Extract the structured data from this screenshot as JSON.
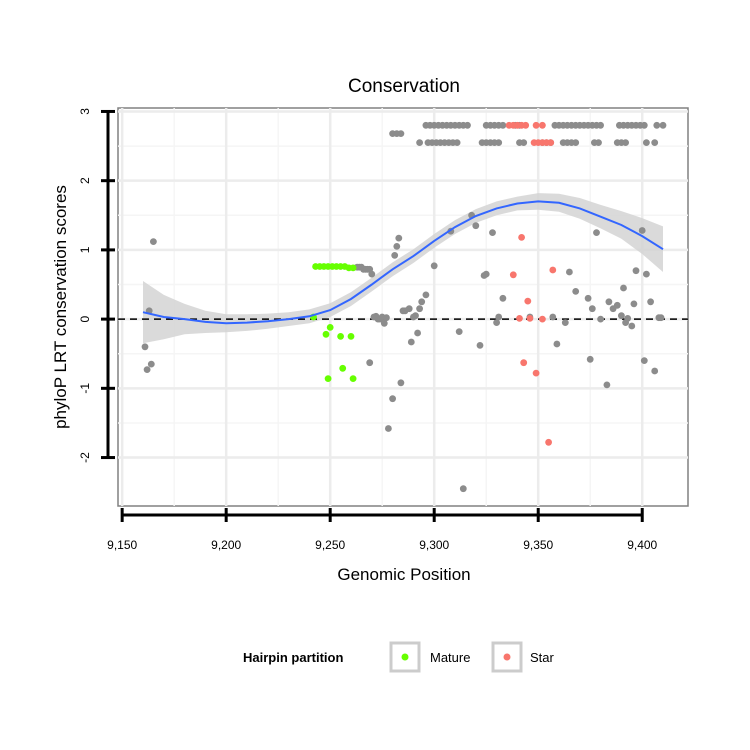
{
  "chart_data": {
    "type": "scatter",
    "title": "Conservation",
    "xlabel": "Genomic Position",
    "ylabel": "phyloP LRT conservation scores",
    "xlim": [
      9148,
      9422
    ],
    "ylim": [
      -2.7,
      3.05
    ],
    "x_ticks": [
      9150,
      9200,
      9250,
      9300,
      9350,
      9400
    ],
    "x_tick_labels": [
      "9,150",
      "9,200",
      "9,250",
      "9,300",
      "9,350",
      "9,400"
    ],
    "y_ticks": [
      -2,
      -1,
      0,
      1,
      2,
      3
    ],
    "y_tick_labels": [
      "-2",
      "-1",
      "0",
      "1",
      "2",
      "3"
    ],
    "grid": true,
    "reference_line": {
      "y": 0,
      "style": "dashed",
      "color": "#000000"
    },
    "legend": {
      "title": "Hairpin partition",
      "position": "bottom",
      "entries": [
        {
          "label": "Mature",
          "color": "#66FF00"
        },
        {
          "label": "Star",
          "color": "#F8766D"
        }
      ]
    },
    "colors": {
      "other": "#8C8C8C",
      "mature": "#66FF00",
      "star": "#F8766D",
      "smooth": "#3366FF",
      "band": "#D3D3D3"
    },
    "series": [
      {
        "name": "Other",
        "points": [
          [
            9161,
            -0.4
          ],
          [
            9162,
            -0.73
          ],
          [
            9163,
            0.12
          ],
          [
            9164,
            -0.65
          ],
          [
            9165,
            1.12
          ],
          [
            9263,
            0.75
          ],
          [
            9264,
            0.75
          ],
          [
            9265,
            0.75
          ],
          [
            9266,
            0.72
          ],
          [
            9267,
            0.72
          ],
          [
            9268,
            0.72
          ],
          [
            9269,
            0.72
          ],
          [
            9270,
            0.65
          ],
          [
            9269,
            -0.63
          ],
          [
            9271,
            0.03
          ],
          [
            9272,
            0.04
          ],
          [
            9273,
            0.0
          ],
          [
            9274,
            0.0
          ],
          [
            9275,
            0.03
          ],
          [
            9276,
            -0.06
          ],
          [
            9277,
            0.02
          ],
          [
            9278,
            -1.58
          ],
          [
            9280,
            -1.15
          ],
          [
            9281,
            0.92
          ],
          [
            9282,
            1.05
          ],
          [
            9283,
            1.17
          ],
          [
            9284,
            -0.92
          ],
          [
            9285,
            0.12
          ],
          [
            9286,
            0.12
          ],
          [
            9288,
            0.15
          ],
          [
            9289,
            -0.33
          ],
          [
            9290,
            0.03
          ],
          [
            9291,
            0.05
          ],
          [
            9292,
            -0.2
          ],
          [
            9293,
            0.15
          ],
          [
            9294,
            0.25
          ],
          [
            9296,
            0.35
          ],
          [
            9300,
            0.77
          ],
          [
            9308,
            1.27
          ],
          [
            9312,
            -0.18
          ],
          [
            9314,
            -2.45
          ],
          [
            9318,
            1.5
          ],
          [
            9320,
            1.35
          ],
          [
            9322,
            -0.38
          ],
          [
            9324,
            0.63
          ],
          [
            9325,
            0.65
          ],
          [
            9328,
            1.25
          ],
          [
            9330,
            -0.05
          ],
          [
            9331,
            0.03
          ],
          [
            9333,
            0.3
          ],
          [
            9346,
            0.03
          ],
          [
            9357,
            0.03
          ],
          [
            9359,
            -0.36
          ],
          [
            9363,
            -0.05
          ],
          [
            9365,
            0.68
          ],
          [
            9368,
            0.4
          ],
          [
            9374,
            0.3
          ],
          [
            9375,
            -0.58
          ],
          [
            9376,
            0.15
          ],
          [
            9378,
            1.25
          ],
          [
            9380,
            0.0
          ],
          [
            9383,
            -0.95
          ],
          [
            9384,
            0.25
          ],
          [
            9386,
            0.15
          ],
          [
            9388,
            0.2
          ],
          [
            9390,
            0.05
          ],
          [
            9391,
            0.45
          ],
          [
            9392,
            -0.05
          ],
          [
            9393,
            0.01
          ],
          [
            9395,
            -0.1
          ],
          [
            9396,
            0.22
          ],
          [
            9397,
            0.7
          ],
          [
            9400,
            1.28
          ],
          [
            9401,
            -0.6
          ],
          [
            9402,
            0.65
          ],
          [
            9404,
            0.25
          ],
          [
            9406,
            -0.75
          ],
          [
            9408,
            0.02
          ],
          [
            9409,
            0.02
          ],
          [
            9280,
            2.68
          ],
          [
            9282,
            2.68
          ],
          [
            9284,
            2.68
          ],
          [
            9293,
            2.55
          ],
          [
            9297,
            2.55
          ],
          [
            9299,
            2.55
          ],
          [
            9301,
            2.55
          ],
          [
            9303,
            2.55
          ],
          [
            9305,
            2.55
          ],
          [
            9307,
            2.55
          ],
          [
            9309,
            2.55
          ],
          [
            9311,
            2.55
          ],
          [
            9323,
            2.55
          ],
          [
            9325,
            2.55
          ],
          [
            9327,
            2.55
          ],
          [
            9329,
            2.55
          ],
          [
            9331,
            2.55
          ],
          [
            9341,
            2.55
          ],
          [
            9343,
            2.55
          ],
          [
            9352,
            2.55
          ],
          [
            9354,
            2.55
          ],
          [
            9356,
            2.55
          ],
          [
            9362,
            2.55
          ],
          [
            9364,
            2.55
          ],
          [
            9366,
            2.55
          ],
          [
            9368,
            2.55
          ],
          [
            9377,
            2.55
          ],
          [
            9379,
            2.55
          ],
          [
            9388,
            2.55
          ],
          [
            9390,
            2.55
          ],
          [
            9392,
            2.55
          ],
          [
            9402,
            2.55
          ],
          [
            9406,
            2.55
          ],
          [
            9296,
            2.8
          ],
          [
            9298,
            2.8
          ],
          [
            9300,
            2.8
          ],
          [
            9302,
            2.8
          ],
          [
            9304,
            2.8
          ],
          [
            9306,
            2.8
          ],
          [
            9308,
            2.8
          ],
          [
            9310,
            2.8
          ],
          [
            9312,
            2.8
          ],
          [
            9314,
            2.8
          ],
          [
            9316,
            2.8
          ],
          [
            9325,
            2.8
          ],
          [
            9327,
            2.8
          ],
          [
            9329,
            2.8
          ],
          [
            9331,
            2.8
          ],
          [
            9333,
            2.8
          ],
          [
            9339,
            2.8
          ],
          [
            9341,
            2.8
          ],
          [
            9358,
            2.8
          ],
          [
            9360,
            2.8
          ],
          [
            9362,
            2.8
          ],
          [
            9364,
            2.8
          ],
          [
            9366,
            2.8
          ],
          [
            9368,
            2.8
          ],
          [
            9370,
            2.8
          ],
          [
            9372,
            2.8
          ],
          [
            9374,
            2.8
          ],
          [
            9376,
            2.8
          ],
          [
            9378,
            2.8
          ],
          [
            9380,
            2.8
          ],
          [
            9389,
            2.8
          ],
          [
            9391,
            2.8
          ],
          [
            9393,
            2.8
          ],
          [
            9395,
            2.8
          ],
          [
            9397,
            2.8
          ],
          [
            9399,
            2.8
          ],
          [
            9401,
            2.8
          ],
          [
            9407,
            2.8
          ],
          [
            9410,
            2.8
          ]
        ]
      },
      {
        "name": "Mature",
        "points": [
          [
            9243,
            0.76
          ],
          [
            9245,
            0.76
          ],
          [
            9247,
            0.76
          ],
          [
            9249,
            0.76
          ],
          [
            9251,
            0.76
          ],
          [
            9253,
            0.76
          ],
          [
            9255,
            0.76
          ],
          [
            9257,
            0.76
          ],
          [
            9259,
            0.74
          ],
          [
            9261,
            0.74
          ],
          [
            9242,
            0.03
          ],
          [
            9250,
            -0.12
          ],
          [
            9248,
            -0.22
          ],
          [
            9255,
            -0.25
          ],
          [
            9260,
            -0.25
          ],
          [
            9249,
            -0.86
          ],
          [
            9256,
            -0.71
          ],
          [
            9261,
            -0.86
          ]
        ]
      },
      {
        "name": "Star",
        "points": [
          [
            9336,
            2.8
          ],
          [
            9338,
            2.8
          ],
          [
            9340,
            2.8
          ],
          [
            9342,
            2.8
          ],
          [
            9344,
            2.8
          ],
          [
            9349,
            2.8
          ],
          [
            9352,
            2.8
          ],
          [
            9348,
            2.55
          ],
          [
            9350,
            2.55
          ],
          [
            9352,
            2.55
          ],
          [
            9354,
            2.55
          ],
          [
            9356,
            2.55
          ],
          [
            9342,
            1.18
          ],
          [
            9338,
            0.64
          ],
          [
            9357,
            0.71
          ],
          [
            9345,
            0.26
          ],
          [
            9341,
            0.01
          ],
          [
            9346,
            0.01
          ],
          [
            9352,
            0.0
          ],
          [
            9343,
            -0.63
          ],
          [
            9349,
            -0.78
          ],
          [
            9355,
            -1.78
          ]
        ]
      }
    ],
    "smooth": {
      "x": [
        9160,
        9170,
        9180,
        9190,
        9200,
        9210,
        9220,
        9230,
        9240,
        9250,
        9260,
        9270,
        9280,
        9290,
        9300,
        9310,
        9320,
        9330,
        9340,
        9350,
        9360,
        9370,
        9380,
        9390,
        9400,
        9410
      ],
      "y": [
        0.1,
        0.03,
        0.0,
        -0.04,
        -0.06,
        -0.05,
        -0.03,
        0.0,
        0.04,
        0.13,
        0.29,
        0.5,
        0.72,
        0.91,
        1.13,
        1.33,
        1.49,
        1.6,
        1.67,
        1.7,
        1.68,
        1.6,
        1.48,
        1.36,
        1.2,
        1.01
      ],
      "se": [
        0.45,
        0.32,
        0.22,
        0.16,
        0.13,
        0.12,
        0.11,
        0.1,
        0.1,
        0.1,
        0.1,
        0.1,
        0.1,
        0.1,
        0.1,
        0.1,
        0.1,
        0.1,
        0.1,
        0.12,
        0.13,
        0.15,
        0.17,
        0.2,
        0.26,
        0.33
      ]
    }
  }
}
